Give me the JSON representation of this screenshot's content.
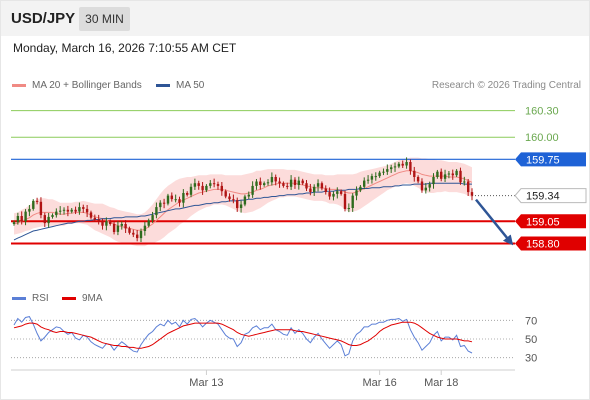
{
  "header": {
    "symbol": "USD/JPY",
    "interval": "30 MIN",
    "datetime": "Monday, March 16, 2026 7:10:55 AM CET"
  },
  "legend": [
    {
      "label": "MA 20 + Bollinger Bands",
      "color": "#f08a84"
    },
    {
      "label": "MA 50",
      "color": "#2e5596"
    }
  ],
  "credit": "Research © 2026 Trading Central",
  "chart_data": [
    {
      "type": "candlestick",
      "title": "USD/JPY",
      "ylim": [
        158.5,
        160.42
      ],
      "price_levels": [
        {
          "label": "160.30",
          "value": 160.3,
          "kind": "target",
          "color": "#8ccc5a"
        },
        {
          "label": "160.00",
          "value": 160.0,
          "kind": "target",
          "color": "#8ccc5a"
        },
        {
          "label": "159.75",
          "value": 159.75,
          "kind": "pivot",
          "color": "#1e62d6"
        },
        {
          "label": "159.34",
          "value": 159.34,
          "kind": "last",
          "color": "#222222"
        },
        {
          "label": "159.05",
          "value": 159.05,
          "kind": "support",
          "color": "#e00000"
        },
        {
          "label": "158.80",
          "value": 158.8,
          "kind": "support",
          "color": "#e00000"
        }
      ],
      "x_ticks": [
        "Mar 13",
        "Mar 16",
        "Mar 18"
      ],
      "close": [
        159.04,
        159.11,
        159.05,
        159.16,
        159.19,
        159.28,
        159.27,
        159.12,
        159.03,
        159.1,
        159.12,
        159.16,
        159.17,
        159.18,
        159.16,
        159.18,
        159.16,
        159.21,
        159.19,
        159.15,
        159.09,
        159.07,
        159.05,
        159.0,
        159.05,
        159.02,
        158.93,
        159.0,
        159.02,
        158.97,
        158.92,
        158.9,
        158.86,
        158.94,
        159.0,
        159.06,
        159.12,
        159.21,
        159.26,
        159.25,
        159.34,
        159.3,
        159.3,
        159.26,
        159.37,
        159.35,
        159.44,
        159.48,
        159.45,
        159.4,
        159.45,
        159.48,
        159.47,
        159.45,
        159.39,
        159.33,
        159.3,
        159.29,
        159.2,
        159.24,
        159.33,
        159.35,
        159.45,
        159.5,
        159.46,
        159.48,
        159.49,
        159.55,
        159.5,
        159.48,
        159.45,
        159.44,
        159.52,
        159.46,
        159.51,
        159.48,
        159.42,
        159.38,
        159.44,
        159.48,
        159.42,
        159.38,
        159.33,
        159.36,
        159.39,
        159.36,
        159.19,
        159.2,
        159.34,
        159.4,
        159.44,
        159.51,
        159.52,
        159.56,
        159.56,
        159.6,
        159.61,
        159.64,
        159.66,
        159.67,
        159.7,
        159.68,
        159.72,
        159.62,
        159.55,
        159.5,
        159.4,
        159.43,
        159.47,
        159.55,
        159.61,
        159.53,
        159.58,
        159.59,
        159.57,
        159.62,
        159.49,
        159.5,
        159.38,
        159.34
      ],
      "ma20": [
        159.02,
        159.03,
        159.05,
        159.07,
        159.09,
        159.12,
        159.14,
        159.15,
        159.15,
        159.15,
        159.15,
        159.14,
        159.13,
        159.13,
        159.14,
        159.14,
        159.15,
        159.15,
        159.15,
        159.14,
        159.12,
        159.1,
        159.09,
        159.08,
        159.06,
        159.04,
        159.02,
        159.0,
        158.99,
        158.98,
        158.97,
        158.96,
        158.95,
        158.95,
        158.96,
        158.99,
        159.02,
        159.06,
        159.1,
        159.14,
        159.18,
        159.21,
        159.24,
        159.27,
        159.29,
        159.31,
        159.33,
        159.35,
        159.37,
        159.38,
        159.39,
        159.4,
        159.41,
        159.41,
        159.41,
        159.4,
        159.39,
        159.38,
        159.37,
        159.36,
        159.36,
        159.37,
        159.38,
        159.4,
        159.41,
        159.43,
        159.45,
        159.46,
        159.47,
        159.48,
        159.48,
        159.48,
        159.48,
        159.48,
        159.47,
        159.46,
        159.45,
        159.44,
        159.43,
        159.43,
        159.43,
        159.42,
        159.41,
        159.41,
        159.41,
        159.4,
        159.38,
        159.37,
        159.37,
        159.38,
        159.4,
        159.42,
        159.44,
        159.46,
        159.48,
        159.5,
        159.52,
        159.54,
        159.56,
        159.58,
        159.6,
        159.61,
        159.62,
        159.62,
        159.61,
        159.6,
        159.58,
        159.57,
        159.56,
        159.56,
        159.56,
        159.56,
        159.56,
        159.55,
        159.55,
        159.55,
        159.54,
        159.53,
        159.51,
        159.49
      ],
      "bb_width": [
        0.12,
        0.12,
        0.13,
        0.13,
        0.14,
        0.15,
        0.16,
        0.16,
        0.16,
        0.15,
        0.15,
        0.14,
        0.13,
        0.13,
        0.12,
        0.12,
        0.12,
        0.12,
        0.13,
        0.13,
        0.14,
        0.15,
        0.16,
        0.17,
        0.17,
        0.17,
        0.18,
        0.18,
        0.18,
        0.18,
        0.18,
        0.18,
        0.18,
        0.18,
        0.19,
        0.2,
        0.22,
        0.24,
        0.26,
        0.27,
        0.27,
        0.27,
        0.27,
        0.26,
        0.25,
        0.24,
        0.22,
        0.21,
        0.2,
        0.19,
        0.18,
        0.18,
        0.17,
        0.17,
        0.17,
        0.17,
        0.18,
        0.19,
        0.2,
        0.21,
        0.22,
        0.22,
        0.22,
        0.22,
        0.21,
        0.2,
        0.19,
        0.18,
        0.17,
        0.16,
        0.16,
        0.15,
        0.15,
        0.15,
        0.15,
        0.15,
        0.15,
        0.15,
        0.15,
        0.15,
        0.15,
        0.15,
        0.16,
        0.16,
        0.17,
        0.18,
        0.2,
        0.21,
        0.21,
        0.21,
        0.21,
        0.2,
        0.19,
        0.18,
        0.17,
        0.16,
        0.15,
        0.14,
        0.14,
        0.14,
        0.14,
        0.14,
        0.14,
        0.15,
        0.16,
        0.17,
        0.18,
        0.19,
        0.19,
        0.19,
        0.18,
        0.18,
        0.17,
        0.17,
        0.17,
        0.17,
        0.17,
        0.17,
        0.17,
        0.17
      ],
      "ma50": [
        158.84,
        158.86,
        158.88,
        158.9,
        158.92,
        158.94,
        158.95,
        158.96,
        158.97,
        158.98,
        158.99,
        159.0,
        159.01,
        159.02,
        159.03,
        159.03,
        159.04,
        159.05,
        159.05,
        159.06,
        159.06,
        159.07,
        159.07,
        159.08,
        159.08,
        159.08,
        159.09,
        159.09,
        159.09,
        159.1,
        159.1,
        159.1,
        159.1,
        159.11,
        159.11,
        159.12,
        159.13,
        159.14,
        159.15,
        159.16,
        159.17,
        159.18,
        159.19,
        159.19,
        159.2,
        159.21,
        159.22,
        159.23,
        159.23,
        159.24,
        159.25,
        159.25,
        159.26,
        159.26,
        159.27,
        159.27,
        159.28,
        159.28,
        159.28,
        159.29,
        159.29,
        159.3,
        159.3,
        159.31,
        159.31,
        159.32,
        159.32,
        159.33,
        159.33,
        159.34,
        159.34,
        159.35,
        159.35,
        159.35,
        159.36,
        159.36,
        159.37,
        159.37,
        159.38,
        159.38,
        159.38,
        159.39,
        159.39,
        159.39,
        159.4,
        159.4,
        159.4,
        159.41,
        159.41,
        159.41,
        159.42,
        159.42,
        159.42,
        159.43,
        159.43,
        159.43,
        159.44,
        159.44,
        159.44,
        159.45,
        159.45,
        159.46,
        159.46,
        159.46,
        159.47,
        159.47,
        159.47,
        159.47,
        159.48,
        159.48,
        159.48,
        159.48,
        159.48,
        159.48,
        159.48,
        159.48,
        159.48,
        159.47,
        159.47,
        159.47
      ],
      "forecast_arrow": {
        "from": 159.34,
        "to": 158.8
      }
    },
    {
      "type": "line",
      "title": "RSI",
      "ylim": [
        20,
        80
      ],
      "y_ticks": [
        70,
        50,
        30
      ],
      "series": [
        {
          "name": "RSI",
          "color": "#5b7fd6",
          "values": [
            65,
            72,
            68,
            73,
            74,
            66,
            56,
            48,
            52,
            57,
            60,
            63,
            62,
            58,
            55,
            57,
            51,
            49,
            54,
            52,
            47,
            44,
            42,
            40,
            45,
            44,
            38,
            43,
            47,
            44,
            40,
            37,
            36,
            44,
            50,
            55,
            58,
            63,
            66,
            64,
            70,
            66,
            68,
            63,
            70,
            66,
            71,
            72,
            68,
            63,
            67,
            70,
            68,
            66,
            60,
            54,
            51,
            50,
            42,
            46,
            55,
            57,
            62,
            64,
            60,
            62,
            62,
            66,
            60,
            58,
            55,
            54,
            62,
            56,
            60,
            56,
            50,
            46,
            52,
            56,
            50,
            45,
            40,
            44,
            48,
            44,
            32,
            34,
            48,
            55,
            58,
            63,
            63,
            66,
            66,
            68,
            68,
            70,
            71,
            71,
            72,
            69,
            71,
            60,
            52,
            46,
            38,
            42,
            46,
            54,
            58,
            48,
            52,
            52,
            49,
            54,
            42,
            43,
            37,
            35
          ]
        },
        {
          "name": "9MA",
          "color": "#e00000",
          "values": [
            62,
            63,
            64,
            66,
            67,
            67,
            66,
            63,
            61,
            60,
            58,
            57,
            58,
            58,
            57,
            57,
            56,
            55,
            54,
            53,
            52,
            50,
            48,
            46,
            45,
            44,
            43,
            43,
            42,
            42,
            41,
            41,
            40,
            40,
            41,
            42,
            44,
            47,
            50,
            53,
            56,
            58,
            60,
            62,
            64,
            65,
            66,
            67,
            67,
            67,
            67,
            67,
            67,
            67,
            66,
            64,
            62,
            60,
            57,
            55,
            54,
            53,
            54,
            55,
            56,
            57,
            58,
            59,
            60,
            60,
            60,
            60,
            60,
            59,
            58,
            58,
            57,
            56,
            55,
            54,
            53,
            52,
            51,
            50,
            49,
            48,
            46,
            44,
            43,
            43,
            44,
            46,
            48,
            51,
            54,
            58,
            61,
            63,
            65,
            66,
            67,
            68,
            68,
            68,
            67,
            65,
            62,
            59,
            56,
            54,
            52,
            51,
            50,
            50,
            50,
            50,
            49,
            48,
            48,
            47
          ]
        }
      ],
      "legend": [
        {
          "label": "RSI",
          "color": "#5b7fd6"
        },
        {
          "label": "9MA",
          "color": "#e00000"
        }
      ]
    }
  ]
}
